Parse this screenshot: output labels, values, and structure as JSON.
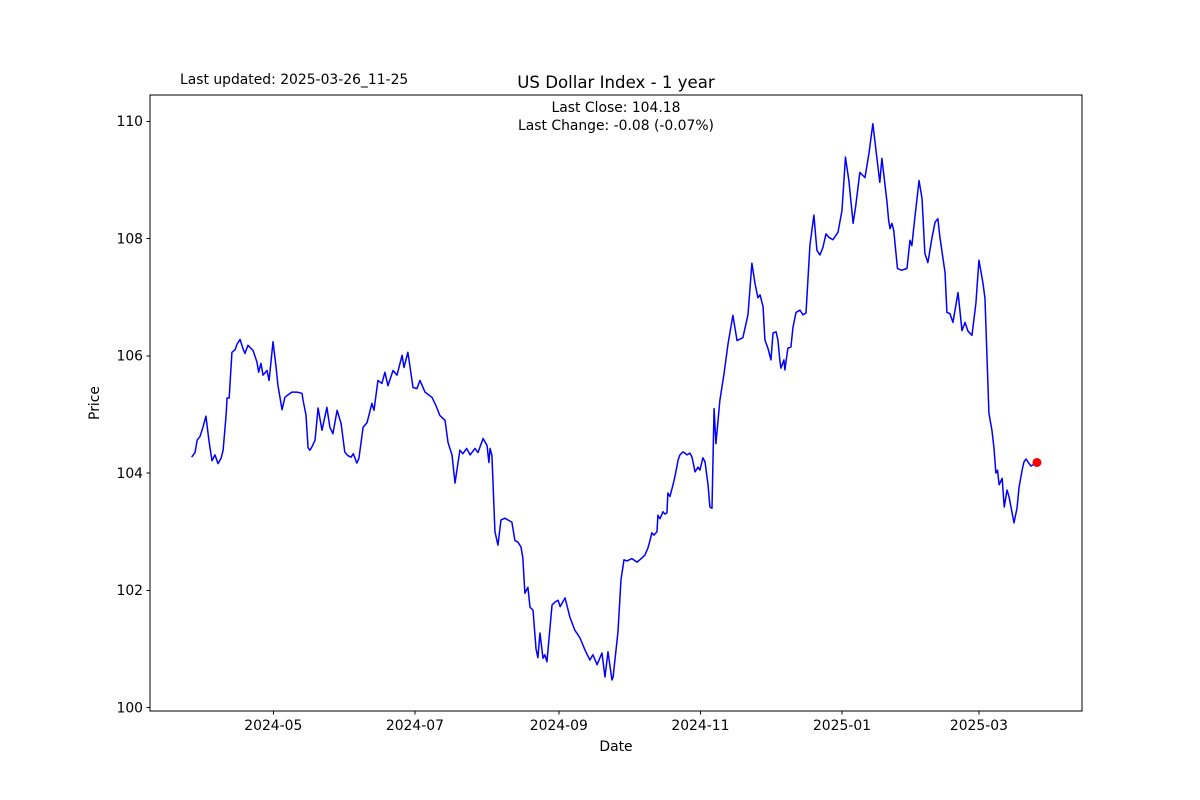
{
  "header": {
    "last_updated": "Last updated: 2025-03-26_11-25",
    "title": "US Dollar Index - 1 year",
    "subtitle_line1": "Last Close: 104.18",
    "subtitle_line2": "Last Change: -0.08 (-0.07%)"
  },
  "chart_data": {
    "type": "line",
    "title": "US Dollar Index - 1 year",
    "xlabel": "Date",
    "ylabel": "Price",
    "x_unit": "days since 2024-03-27",
    "x_range_dates": [
      "2024-03-27",
      "2025-03-26"
    ],
    "xlim_days": [
      -18.1,
      383.4
    ],
    "ylim": [
      99.94,
      110.45
    ],
    "grid": false,
    "legend": "none",
    "line_color": "#0000ff",
    "marker_color": "#ff0000",
    "last_close": 104.18,
    "last_change_abs": -0.08,
    "last_change_pct": -0.07,
    "x_ticks": [
      {
        "label": "2024-05",
        "day": 35
      },
      {
        "label": "2024-07",
        "day": 96
      },
      {
        "label": "2024-09",
        "day": 158
      },
      {
        "label": "2024-11",
        "day": 219
      },
      {
        "label": "2025-01",
        "day": 280
      },
      {
        "label": "2025-03",
        "day": 339
      }
    ],
    "y_ticks": [
      {
        "label": "100",
        "value": 100
      },
      {
        "label": "102",
        "value": 102
      },
      {
        "label": "104",
        "value": 104
      },
      {
        "label": "106",
        "value": 106
      },
      {
        "label": "108",
        "value": 108
      },
      {
        "label": "110",
        "value": 110
      }
    ],
    "series": [
      {
        "name": "US Dollar Index",
        "points": [
          [
            0,
            104.28
          ],
          [
            1.3,
            104.35
          ],
          [
            2.2,
            104.56
          ],
          [
            3.4,
            104.62
          ],
          [
            4.7,
            104.78
          ],
          [
            6,
            104.97
          ],
          [
            7.3,
            104.55
          ],
          [
            8.6,
            104.21
          ],
          [
            9.9,
            104.31
          ],
          [
            11.2,
            104.16
          ],
          [
            12.5,
            104.25
          ],
          [
            13.4,
            104.39
          ],
          [
            14.7,
            105.0
          ],
          [
            15.1,
            105.28
          ],
          [
            16,
            105.28
          ],
          [
            17.2,
            106.06
          ],
          [
            18.5,
            106.1
          ],
          [
            19.4,
            106.2
          ],
          [
            20.7,
            106.28
          ],
          [
            21.9,
            106.13
          ],
          [
            22.8,
            106.04
          ],
          [
            24.1,
            106.18
          ],
          [
            26.3,
            106.09
          ],
          [
            28,
            105.89
          ],
          [
            28.7,
            105.72
          ],
          [
            29.7,
            105.87
          ],
          [
            30.6,
            105.67
          ],
          [
            32.3,
            105.75
          ],
          [
            33.2,
            105.58
          ],
          [
            34.9,
            106.24
          ],
          [
            36.2,
            105.81
          ],
          [
            37,
            105.5
          ],
          [
            38.8,
            105.08
          ],
          [
            40,
            105.29
          ],
          [
            40.9,
            105.32
          ],
          [
            43,
            105.38
          ],
          [
            45.2,
            105.38
          ],
          [
            47.4,
            105.36
          ],
          [
            47.8,
            105.25
          ],
          [
            49.1,
            104.99
          ],
          [
            50,
            104.43
          ],
          [
            50.8,
            104.39
          ],
          [
            51.7,
            104.45
          ],
          [
            53,
            104.56
          ],
          [
            54.3,
            105.11
          ],
          [
            56,
            104.73
          ],
          [
            58.1,
            105.12
          ],
          [
            59.4,
            104.78
          ],
          [
            60.7,
            104.67
          ],
          [
            62.5,
            105.07
          ],
          [
            64.2,
            104.85
          ],
          [
            65.8,
            104.36
          ],
          [
            67,
            104.3
          ],
          [
            68.5,
            104.27
          ],
          [
            69.5,
            104.33
          ],
          [
            71,
            104.17
          ],
          [
            71.9,
            104.25
          ],
          [
            73.7,
            104.78
          ],
          [
            75.4,
            104.86
          ],
          [
            77.5,
            105.19
          ],
          [
            78.4,
            105.07
          ],
          [
            80.1,
            105.58
          ],
          [
            81.8,
            105.53
          ],
          [
            83.1,
            105.72
          ],
          [
            84.4,
            105.49
          ],
          [
            86.6,
            105.75
          ],
          [
            88.3,
            105.67
          ],
          [
            90.5,
            106.01
          ],
          [
            91.3,
            105.8
          ],
          [
            93,
            106.06
          ],
          [
            95.2,
            105.46
          ],
          [
            96.9,
            105.44
          ],
          [
            98.2,
            105.58
          ],
          [
            100.4,
            105.38
          ],
          [
            103.4,
            105.29
          ],
          [
            105.1,
            105.15
          ],
          [
            106.8,
            104.98
          ],
          [
            109,
            104.9
          ],
          [
            110.3,
            104.52
          ],
          [
            112,
            104.31
          ],
          [
            113.3,
            103.83
          ],
          [
            115.4,
            104.39
          ],
          [
            116.7,
            104.33
          ],
          [
            118.3,
            104.42
          ],
          [
            119.8,
            104.31
          ],
          [
            121.9,
            104.42
          ],
          [
            123.2,
            104.35
          ],
          [
            125.4,
            104.59
          ],
          [
            127.1,
            104.47
          ],
          [
            127.9,
            104.18
          ],
          [
            128.4,
            104.42
          ],
          [
            129.2,
            104.3
          ],
          [
            130.5,
            103.0
          ],
          [
            131.8,
            102.77
          ],
          [
            133.1,
            103.2
          ],
          [
            134.8,
            103.23
          ],
          [
            136.5,
            103.19
          ],
          [
            137.8,
            103.16
          ],
          [
            139.1,
            102.85
          ],
          [
            140.4,
            102.82
          ],
          [
            141.7,
            102.74
          ],
          [
            142.5,
            102.56
          ],
          [
            143.4,
            101.95
          ],
          [
            144.7,
            102.05
          ],
          [
            145.6,
            101.71
          ],
          [
            146.9,
            101.66
          ],
          [
            148.2,
            101.0
          ],
          [
            149,
            100.85
          ],
          [
            149.9,
            101.27
          ],
          [
            151.2,
            100.84
          ],
          [
            152,
            100.9
          ],
          [
            152.9,
            100.78
          ],
          [
            155.1,
            101.75
          ],
          [
            156.4,
            101.8
          ],
          [
            157.7,
            101.83
          ],
          [
            158.6,
            101.72
          ],
          [
            160.7,
            101.87
          ],
          [
            162.8,
            101.54
          ],
          [
            164.9,
            101.32
          ],
          [
            167.1,
            101.19
          ],
          [
            169.3,
            100.98
          ],
          [
            171.4,
            100.81
          ],
          [
            172.7,
            100.9
          ],
          [
            174.5,
            100.73
          ],
          [
            176.6,
            100.93
          ],
          [
            177.9,
            100.52
          ],
          [
            179.2,
            100.95
          ],
          [
            180.9,
            100.47
          ],
          [
            181.4,
            100.52
          ],
          [
            183.5,
            101.29
          ],
          [
            184.8,
            102.18
          ],
          [
            186.1,
            102.52
          ],
          [
            187.4,
            102.5
          ],
          [
            189.5,
            102.54
          ],
          [
            191.7,
            102.48
          ],
          [
            193.8,
            102.55
          ],
          [
            195.1,
            102.6
          ],
          [
            196.4,
            102.72
          ],
          [
            197.3,
            102.85
          ],
          [
            198.1,
            102.98
          ],
          [
            199,
            102.94
          ],
          [
            200.3,
            103.0
          ],
          [
            200.7,
            103.28
          ],
          [
            201.6,
            103.22
          ],
          [
            202.9,
            103.34
          ],
          [
            203.7,
            103.3
          ],
          [
            204.6,
            103.32
          ],
          [
            205,
            103.66
          ],
          [
            205.9,
            103.6
          ],
          [
            207.2,
            103.8
          ],
          [
            208.1,
            103.95
          ],
          [
            209.4,
            104.22
          ],
          [
            210.2,
            104.31
          ],
          [
            211.5,
            104.36
          ],
          [
            212.3,
            104.34
          ],
          [
            213.2,
            104.31
          ],
          [
            214.5,
            104.34
          ],
          [
            215.4,
            104.27
          ],
          [
            216.7,
            104.02
          ],
          [
            218,
            104.1
          ],
          [
            218.8,
            104.05
          ],
          [
            220.1,
            104.26
          ],
          [
            221,
            104.19
          ],
          [
            222.3,
            103.8
          ],
          [
            223.1,
            103.42
          ],
          [
            224,
            103.4
          ],
          [
            224.9,
            105.1
          ],
          [
            225.7,
            104.5
          ],
          [
            227.4,
            105.24
          ],
          [
            229.2,
            105.7
          ],
          [
            230.9,
            106.2
          ],
          [
            233,
            106.69
          ],
          [
            234.8,
            106.26
          ],
          [
            237.3,
            106.31
          ],
          [
            239.5,
            106.7
          ],
          [
            241.2,
            107.58
          ],
          [
            242.5,
            107.24
          ],
          [
            243.8,
            106.99
          ],
          [
            244.7,
            107.04
          ],
          [
            246,
            106.84
          ],
          [
            246.8,
            106.27
          ],
          [
            248.1,
            106.13
          ],
          [
            249.4,
            105.93
          ],
          [
            250.3,
            106.39
          ],
          [
            251.6,
            106.41
          ],
          [
            252.4,
            106.27
          ],
          [
            253.3,
            105.9
          ],
          [
            253.7,
            105.79
          ],
          [
            255,
            105.93
          ],
          [
            255.4,
            105.76
          ],
          [
            256.7,
            106.13
          ],
          [
            258,
            106.15
          ],
          [
            258.9,
            106.49
          ],
          [
            260.2,
            106.74
          ],
          [
            261.9,
            106.78
          ],
          [
            263.2,
            106.7
          ],
          [
            264.5,
            106.73
          ],
          [
            266.2,
            107.89
          ],
          [
            267.9,
            108.4
          ],
          [
            269.2,
            107.8
          ],
          [
            270.5,
            107.72
          ],
          [
            271.8,
            107.85
          ],
          [
            273.1,
            108.08
          ],
          [
            274.4,
            108.02
          ],
          [
            276.1,
            107.98
          ],
          [
            278.3,
            108.11
          ],
          [
            280,
            108.48
          ],
          [
            281.5,
            109.39
          ],
          [
            283,
            108.98
          ],
          [
            284.8,
            108.26
          ],
          [
            285.9,
            108.55
          ],
          [
            287.7,
            109.13
          ],
          [
            289.9,
            109.04
          ],
          [
            291.6,
            109.45
          ],
          [
            293.3,
            109.96
          ],
          [
            295.5,
            109.22
          ],
          [
            296.3,
            108.96
          ],
          [
            297.2,
            109.37
          ],
          [
            299.4,
            108.62
          ],
          [
            300.1,
            108.31
          ],
          [
            300.7,
            108.17
          ],
          [
            301.5,
            108.26
          ],
          [
            302.3,
            108.14
          ],
          [
            303.9,
            107.49
          ],
          [
            305.6,
            107.46
          ],
          [
            308,
            107.49
          ],
          [
            309.3,
            107.97
          ],
          [
            310.1,
            107.88
          ],
          [
            311.4,
            108.36
          ],
          [
            313.2,
            108.99
          ],
          [
            314.5,
            108.68
          ],
          [
            315.7,
            107.75
          ],
          [
            317,
            107.59
          ],
          [
            318.8,
            108.02
          ],
          [
            320.1,
            108.28
          ],
          [
            321.3,
            108.34
          ],
          [
            322.2,
            108.02
          ],
          [
            324.4,
            107.42
          ],
          [
            325.2,
            106.74
          ],
          [
            326.5,
            106.72
          ],
          [
            327.8,
            106.57
          ],
          [
            330,
            107.08
          ],
          [
            331.7,
            106.43
          ],
          [
            333,
            106.57
          ],
          [
            334.3,
            106.42
          ],
          [
            336,
            106.35
          ],
          [
            337.7,
            106.9
          ],
          [
            339,
            107.63
          ],
          [
            340.7,
            107.25
          ],
          [
            341.6,
            106.98
          ],
          [
            343.3,
            105.02
          ],
          [
            344.6,
            104.73
          ],
          [
            345.5,
            104.42
          ],
          [
            346.3,
            104.0
          ],
          [
            347,
            104.05
          ],
          [
            347.7,
            103.8
          ],
          [
            349,
            103.91
          ],
          [
            349.9,
            103.42
          ],
          [
            351.1,
            103.71
          ],
          [
            352,
            103.59
          ],
          [
            354.1,
            103.15
          ],
          [
            355.4,
            103.4
          ],
          [
            356.3,
            103.76
          ],
          [
            357.6,
            104.05
          ],
          [
            358.4,
            104.19
          ],
          [
            359.3,
            104.24
          ],
          [
            360.1,
            104.19
          ],
          [
            361.4,
            104.12
          ],
          [
            362.7,
            104.15
          ],
          [
            364,
            104.18
          ]
        ]
      }
    ]
  }
}
